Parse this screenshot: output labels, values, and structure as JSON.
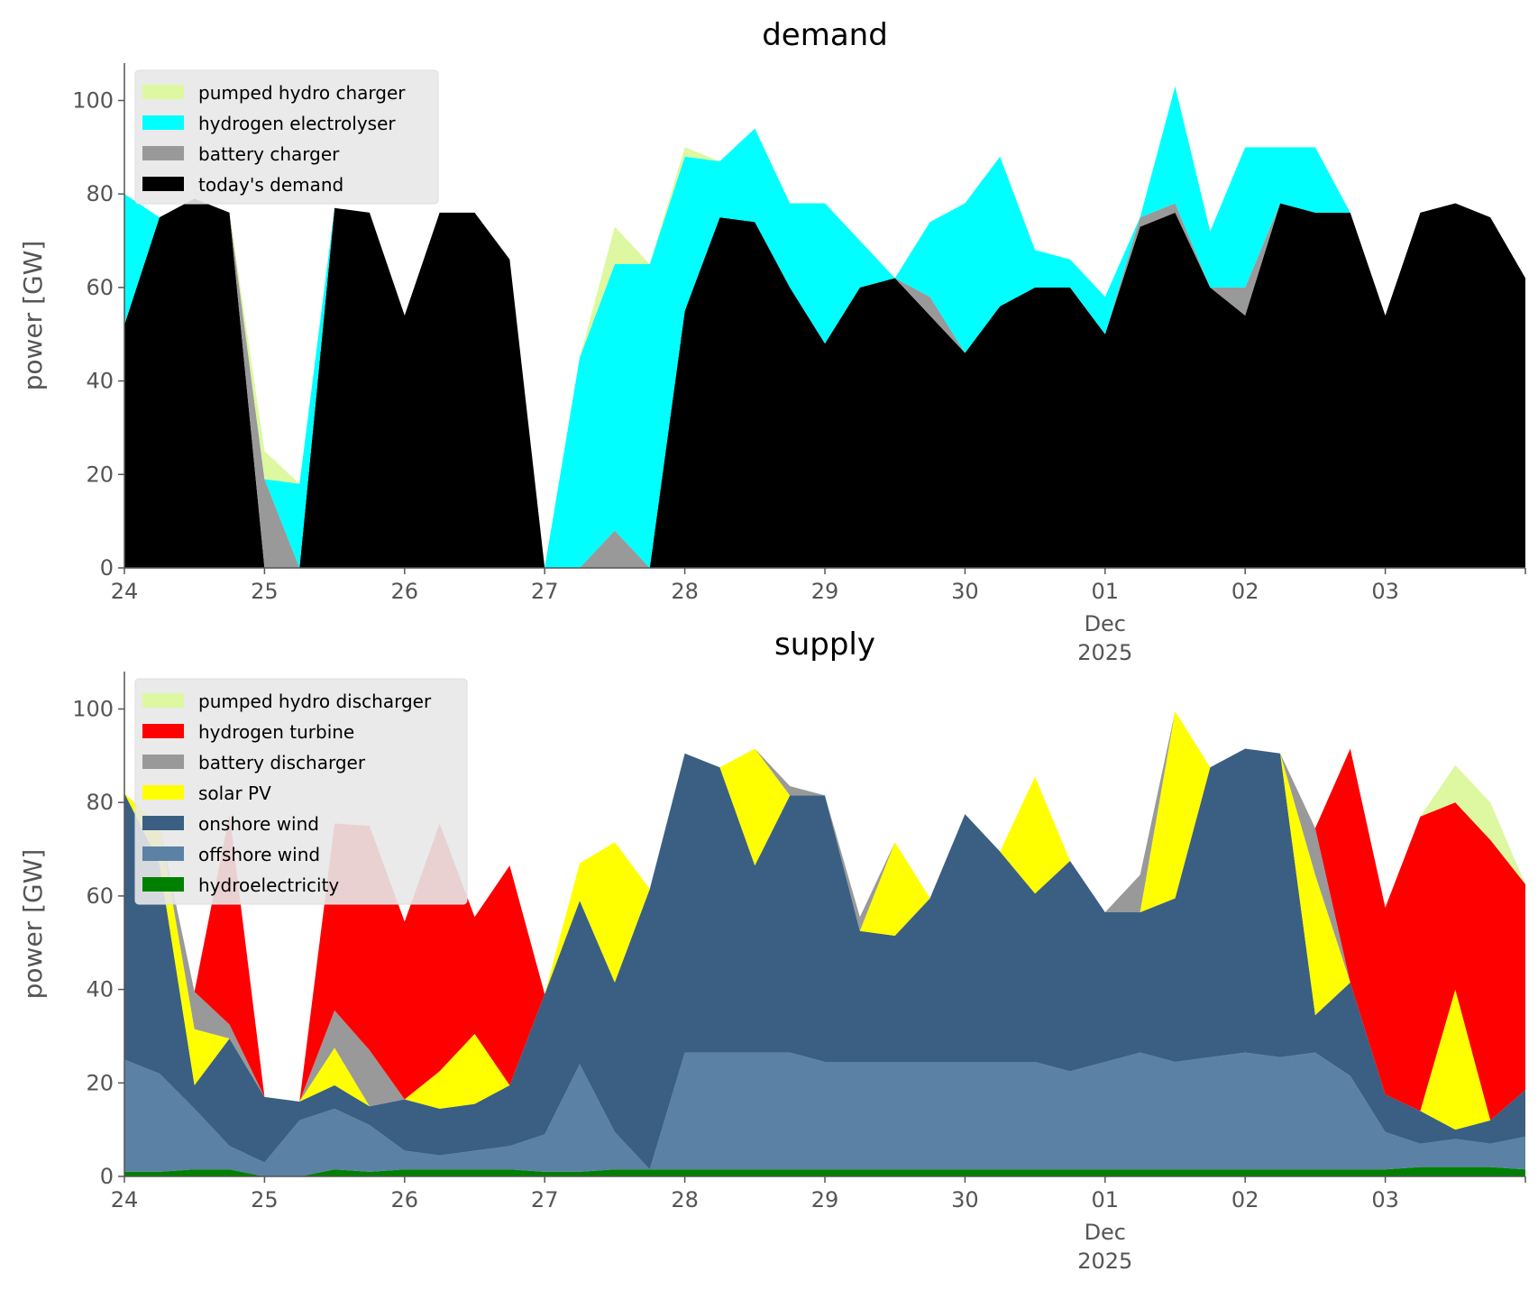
{
  "chart_data": [
    {
      "type": "area",
      "stacked": true,
      "title": "demand",
      "ylabel": "power [GW]",
      "xlabel": "",
      "ylim": [
        0,
        108
      ],
      "y_ticks": [
        0,
        20,
        40,
        60,
        80,
        100
      ],
      "xlim": [
        0,
        10
      ],
      "x_ticks": [
        {
          "x": 0,
          "label": "24"
        },
        {
          "x": 1,
          "label": "25"
        },
        {
          "x": 2,
          "label": "26"
        },
        {
          "x": 3,
          "label": "27"
        },
        {
          "x": 4,
          "label": "28"
        },
        {
          "x": 5,
          "label": "29"
        },
        {
          "x": 6,
          "label": "30"
        },
        {
          "x": 7,
          "label": "01",
          "sub": [
            "Dec",
            "2025"
          ]
        },
        {
          "x": 8,
          "label": "02"
        },
        {
          "x": 9,
          "label": "03"
        }
      ],
      "x": [
        0,
        0.25,
        0.5,
        0.75,
        1,
        1.25,
        1.5,
        1.75,
        2,
        2.25,
        2.5,
        2.75,
        3,
        3.25,
        3.5,
        3.75,
        4,
        4.25,
        4.5,
        4.75,
        5,
        5.25,
        5.5,
        5.75,
        6,
        6.25,
        6.5,
        6.75,
        7,
        7.25,
        7.5,
        7.75,
        8,
        8.25,
        8.5,
        8.75,
        9,
        9.25,
        9.5,
        9.75,
        10
      ],
      "legend_position": "top-left",
      "series": [
        {
          "name": "today's demand",
          "color": "#000000",
          "values": [
            52,
            75,
            79,
            76,
            0,
            0,
            77,
            76,
            54,
            76,
            76,
            66,
            0,
            0,
            0,
            0,
            55,
            75,
            74,
            60,
            48,
            60,
            62,
            54,
            46,
            56,
            60,
            60,
            50,
            73,
            76,
            60,
            54,
            78,
            76,
            76,
            54,
            76,
            78,
            75,
            62
          ]
        },
        {
          "name": "battery charger",
          "color": "#999999",
          "values": [
            0,
            0,
            0,
            0,
            19,
            0,
            0,
            0,
            0,
            0,
            0,
            0,
            0,
            0,
            8,
            0,
            0,
            0,
            0,
            0,
            0,
            0,
            0,
            4,
            0,
            0,
            0,
            0,
            0,
            2,
            2,
            0,
            6,
            0,
            0,
            0,
            0,
            0,
            0,
            0,
            0
          ]
        },
        {
          "name": "hydrogen electrolyser",
          "color": "#00ffff",
          "values": [
            28,
            0,
            0,
            0,
            0,
            18,
            0,
            0,
            0,
            0,
            0,
            0,
            0,
            45,
            57,
            65,
            33,
            12,
            20,
            18,
            30,
            10,
            0,
            16,
            32,
            32,
            8,
            6,
            8,
            0,
            25,
            12,
            30,
            12,
            14,
            0,
            0,
            0,
            0,
            0,
            0
          ]
        },
        {
          "name": "pumped hydro charger",
          "color": "#ddf8a0",
          "values": [
            0,
            0,
            0,
            0,
            6,
            0,
            0,
            0,
            0,
            0,
            0,
            0,
            0,
            0,
            8,
            0,
            2,
            0,
            0,
            0,
            0,
            0,
            0,
            0,
            0,
            0,
            0,
            0,
            0,
            0,
            0,
            0,
            0,
            0,
            0,
            0,
            0,
            0,
            0,
            0,
            0
          ]
        }
      ],
      "legend_order": [
        "pumped hydro charger",
        "hydrogen electrolyser",
        "battery charger",
        "today's demand"
      ]
    },
    {
      "type": "area",
      "stacked": true,
      "title": "supply",
      "ylabel": "power [GW]",
      "xlabel": "",
      "ylim": [
        0,
        108
      ],
      "y_ticks": [
        0,
        20,
        40,
        60,
        80,
        100
      ],
      "xlim": [
        0,
        10
      ],
      "x_ticks": [
        {
          "x": 0,
          "label": "24"
        },
        {
          "x": 1,
          "label": "25"
        },
        {
          "x": 2,
          "label": "26"
        },
        {
          "x": 3,
          "label": "27"
        },
        {
          "x": 4,
          "label": "28"
        },
        {
          "x": 5,
          "label": "29"
        },
        {
          "x": 6,
          "label": "30"
        },
        {
          "x": 7,
          "label": "01",
          "sub": [
            "Dec",
            "2025"
          ]
        },
        {
          "x": 8,
          "label": "02"
        },
        {
          "x": 9,
          "label": "03"
        }
      ],
      "x": [
        0,
        0.25,
        0.5,
        0.75,
        1,
        1.25,
        1.5,
        1.75,
        2,
        2.25,
        2.5,
        2.75,
        3,
        3.25,
        3.5,
        3.75,
        4,
        4.25,
        4.5,
        4.75,
        5,
        5.25,
        5.5,
        5.75,
        6,
        6.25,
        6.5,
        6.75,
        7,
        7.25,
        7.5,
        7.75,
        8,
        8.25,
        8.5,
        8.75,
        9,
        9.25,
        9.5,
        9.75,
        10
      ],
      "legend_position": "top-left",
      "series": [
        {
          "name": "hydroelectricity",
          "color": "#008000",
          "values": [
            1,
            1,
            1.5,
            1.5,
            0,
            0,
            1.5,
            1,
            1.5,
            1.5,
            1.5,
            1.5,
            1,
            1,
            1.5,
            1.5,
            1.5,
            1.5,
            1.5,
            1.5,
            1.5,
            1.5,
            1.5,
            1.5,
            1.5,
            1.5,
            1.5,
            1.5,
            1.5,
            1.5,
            1.5,
            1.5,
            1.5,
            1.5,
            1.5,
            1.5,
            1.5,
            2,
            2,
            2,
            1.5
          ]
        },
        {
          "name": "offshore wind",
          "color": "#5b81a5",
          "values": [
            24,
            21,
            13,
            5,
            3,
            12,
            13,
            10,
            4,
            3,
            4,
            5,
            8,
            23,
            8,
            0,
            25,
            25,
            25,
            25,
            23,
            23,
            23,
            23,
            23,
            23,
            23,
            21,
            23,
            25,
            23,
            24,
            25,
            24,
            25,
            20,
            8,
            5,
            6,
            5,
            7
          ]
        },
        {
          "name": "onshore wind",
          "color": "#3a5f82",
          "values": [
            57,
            45,
            5,
            23,
            14,
            4,
            5,
            4,
            11,
            10,
            10,
            13,
            30,
            35,
            32,
            60,
            64,
            61,
            40,
            55,
            57,
            28,
            27,
            35,
            53,
            45,
            36,
            45,
            32,
            30,
            35,
            62,
            65,
            65,
            8,
            20,
            8,
            7,
            2,
            5,
            10
          ]
        },
        {
          "name": "solar PV",
          "color": "#ffff00",
          "values": [
            0,
            8,
            12,
            0,
            0,
            0,
            8,
            0,
            0,
            8,
            15,
            0,
            0,
            8,
            30,
            0,
            0,
            0,
            25,
            0,
            0,
            0,
            20,
            0,
            0,
            0,
            25,
            0,
            0,
            0,
            40,
            0,
            0,
            0,
            30,
            0,
            0,
            0,
            30,
            0,
            0
          ]
        },
        {
          "name": "battery discharger",
          "color": "#999999",
          "values": [
            0,
            0,
            8,
            3,
            0,
            0,
            8,
            12,
            0,
            0,
            0,
            0,
            0,
            0,
            0,
            0,
            0,
            0,
            0,
            2,
            0,
            3,
            0,
            0,
            0,
            0,
            0,
            0,
            0,
            8,
            0,
            0,
            0,
            0,
            10,
            0,
            0,
            0,
            0,
            0,
            0
          ]
        },
        {
          "name": "hydrogen turbine",
          "color": "#ff0000",
          "values": [
            0,
            0,
            0,
            45,
            0,
            0,
            40,
            48,
            38,
            53,
            25,
            47,
            0,
            0,
            0,
            0,
            0,
            0,
            0,
            0,
            0,
            0,
            0,
            0,
            0,
            0,
            0,
            0,
            0,
            0,
            0,
            0,
            0,
            0,
            0,
            50,
            40,
            63,
            40,
            60,
            44
          ]
        },
        {
          "name": "pumped hydro discharger",
          "color": "#ddf8a0",
          "values": [
            0,
            0,
            0,
            0,
            0,
            0,
            0,
            0,
            0,
            0,
            0,
            0,
            0,
            0,
            0,
            0,
            0,
            0,
            0,
            0,
            0,
            0,
            0,
            0,
            0,
            0,
            0,
            0,
            0,
            0,
            0,
            0,
            0,
            0,
            0,
            0,
            0,
            0,
            8,
            8,
            0
          ]
        }
      ],
      "legend_order": [
        "pumped hydro discharger",
        "hydrogen turbine",
        "battery discharger",
        "solar PV",
        "onshore wind",
        "offshore wind",
        "hydroelectricity"
      ]
    }
  ]
}
